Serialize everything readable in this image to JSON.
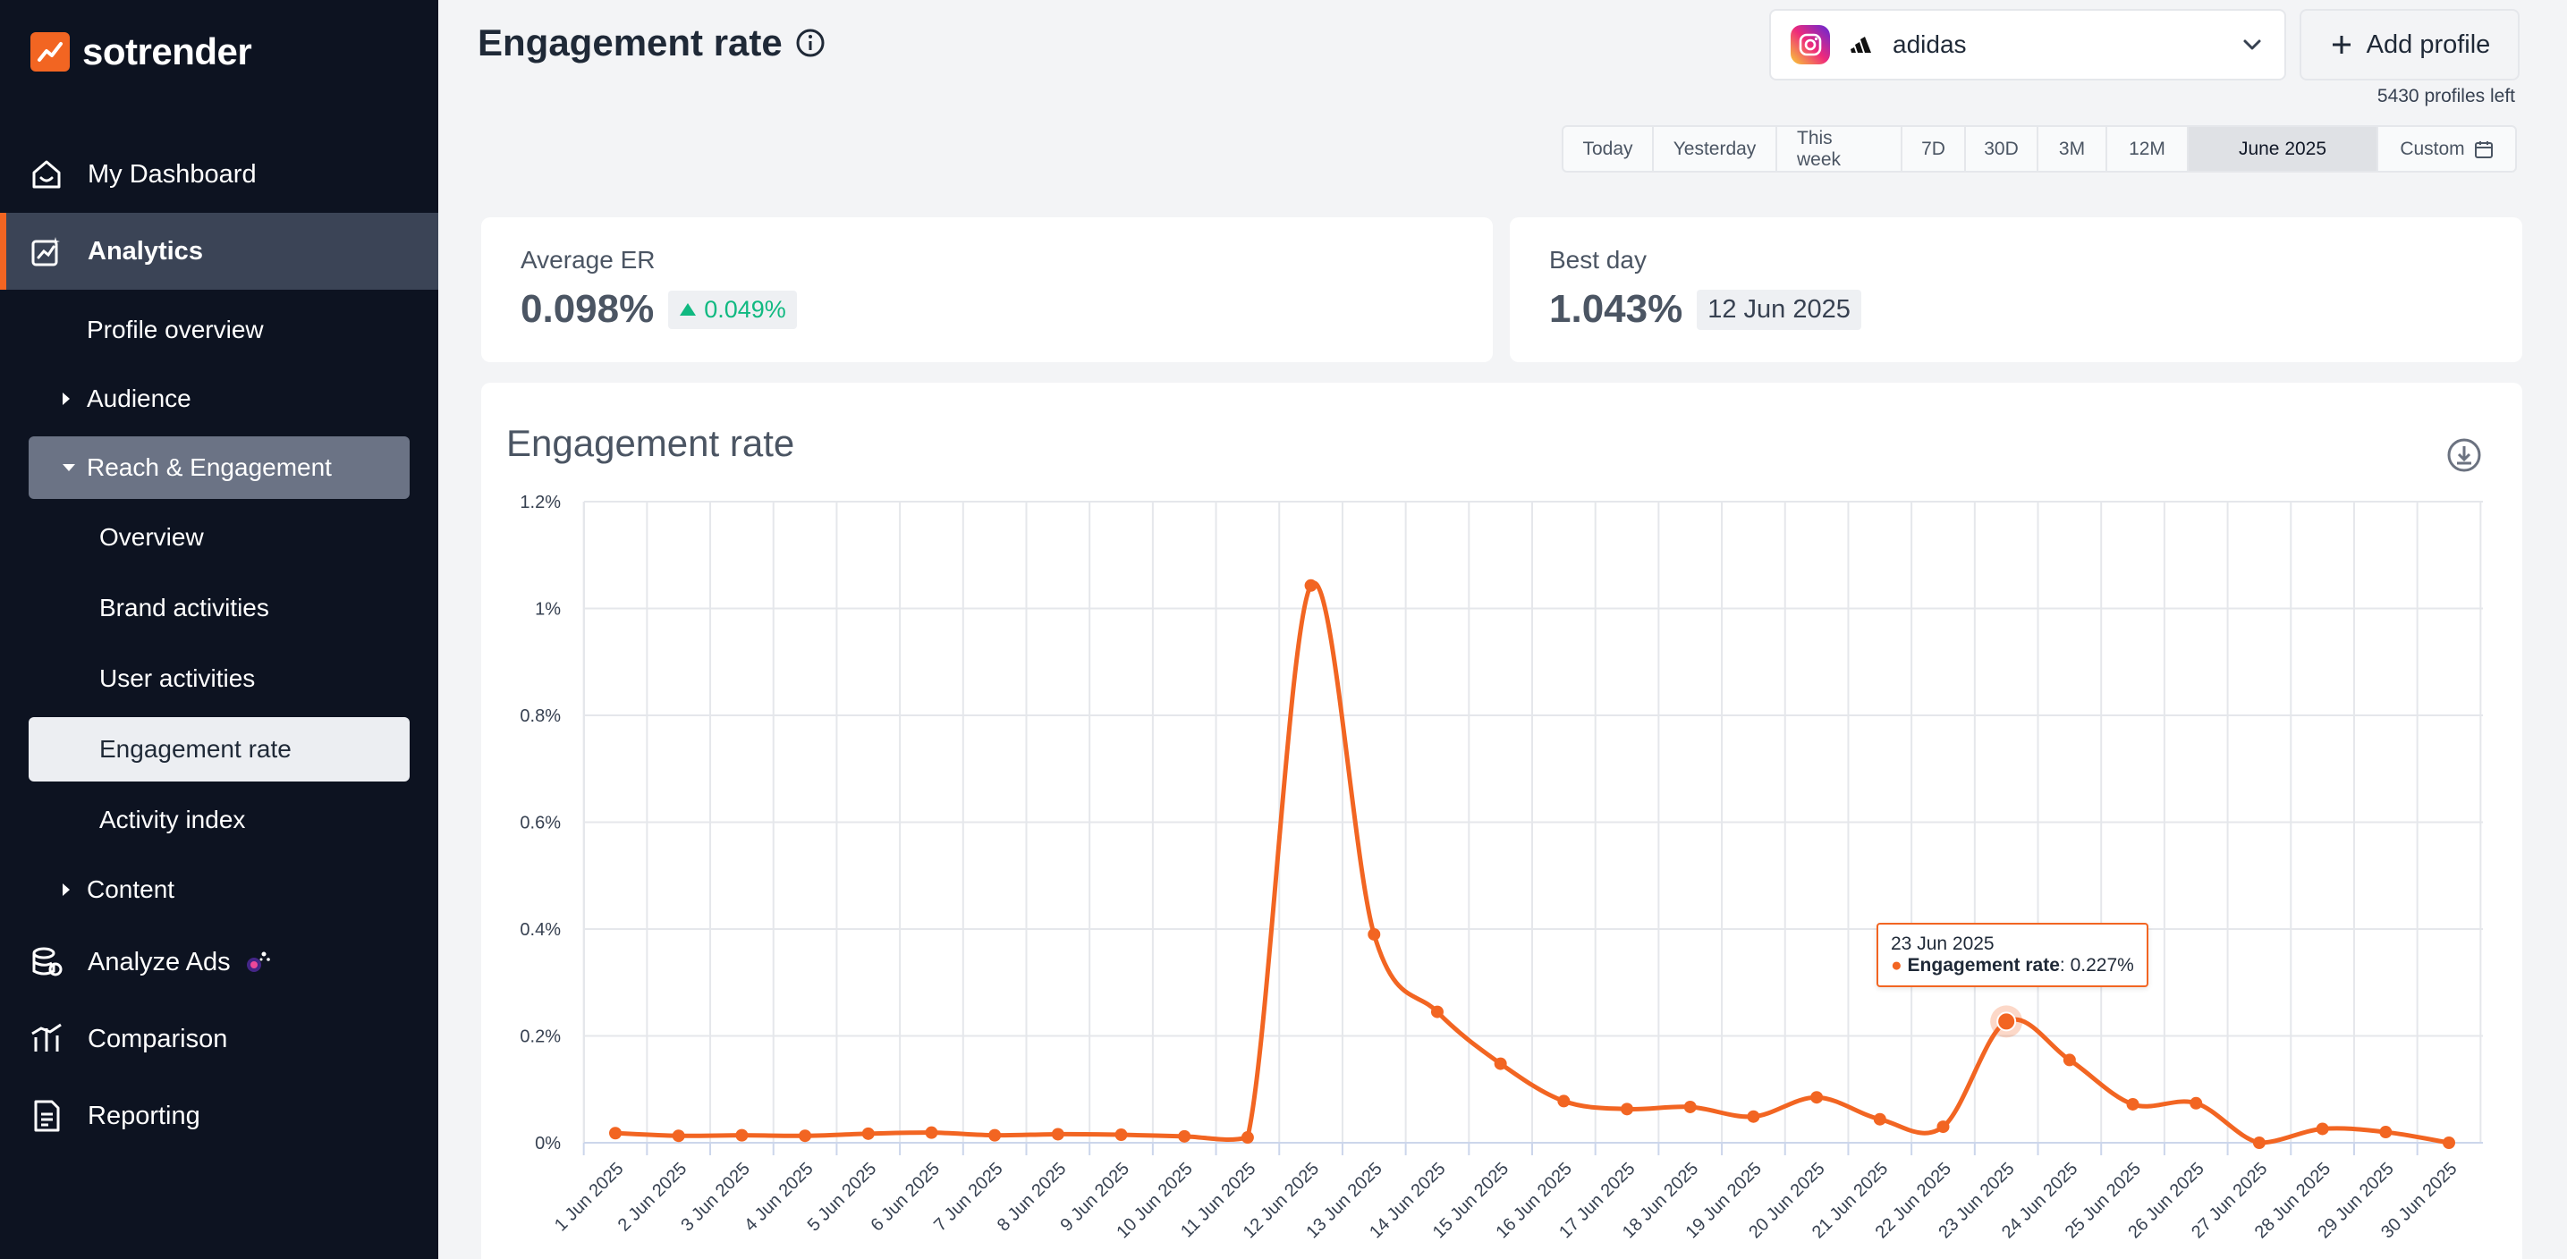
{
  "brand": {
    "name": "sotrender",
    "accent": "#f26522"
  },
  "sidebar": {
    "items": [
      {
        "label": "My Dashboard",
        "icon": "dashboard-icon"
      },
      {
        "label": "Analytics",
        "icon": "analytics-icon",
        "active": true
      },
      {
        "label": "Analyze Ads",
        "icon": "ads-icon"
      },
      {
        "label": "Comparison",
        "icon": "comparison-icon"
      },
      {
        "label": "Reporting",
        "icon": "report-icon"
      }
    ],
    "analytics_sub": {
      "profile_overview": "Profile overview",
      "audience": "Audience",
      "reach_engagement": "Reach & Engagement",
      "overview": "Overview",
      "brand_activities": "Brand activities",
      "user_activities": "User activities",
      "engagement_rate": "Engagement rate",
      "activity_index": "Activity index",
      "content": "Content"
    }
  },
  "header": {
    "title": "Engagement rate",
    "profile": {
      "network": "instagram",
      "name": "adidas"
    },
    "add_profile_label": "Add profile",
    "profiles_left": "5430 profiles left",
    "ranges": [
      "Today",
      "Yesterday",
      "This week",
      "7D",
      "30D",
      "3M",
      "12M",
      "June 2025",
      "Custom"
    ],
    "active_range": "June 2025"
  },
  "cards": {
    "average_er": {
      "label": "Average ER",
      "value": "0.098%",
      "delta": "0.049%"
    },
    "best_day": {
      "label": "Best day",
      "value": "1.043%",
      "date": "12 Jun 2025"
    }
  },
  "chart_data": {
    "type": "line",
    "title": "Engagement rate",
    "x": [
      "1 Jun 2025",
      "2 Jun 2025",
      "3 Jun 2025",
      "4 Jun 2025",
      "5 Jun 2025",
      "6 Jun 2025",
      "7 Jun 2025",
      "8 Jun 2025",
      "9 Jun 2025",
      "10 Jun 2025",
      "11 Jun 2025",
      "12 Jun 2025",
      "13 Jun 2025",
      "14 Jun 2025",
      "15 Jun 2025",
      "16 Jun 2025",
      "17 Jun 2025",
      "18 Jun 2025",
      "19 Jun 2025",
      "20 Jun 2025",
      "21 Jun 2025",
      "22 Jun 2025",
      "23 Jun 2025",
      "24 Jun 2025",
      "25 Jun 2025",
      "26 Jun 2025",
      "27 Jun 2025",
      "28 Jun 2025",
      "29 Jun 2025",
      "30 Jun 2025"
    ],
    "series": [
      {
        "name": "Engagement rate",
        "color": "#f26522",
        "values": [
          0.018,
          0.013,
          0.014,
          0.013,
          0.017,
          0.019,
          0.014,
          0.016,
          0.015,
          0.012,
          0.01,
          1.043,
          0.39,
          0.245,
          0.148,
          0.078,
          0.063,
          0.067,
          0.049,
          0.085,
          0.044,
          0.03,
          0.227,
          0.155,
          0.072,
          0.074,
          0.0,
          0.026,
          0.02,
          0.0
        ]
      }
    ],
    "ylim": [
      0,
      1.2
    ],
    "yticks": [
      "0%",
      "0.2%",
      "0.4%",
      "0.6%",
      "0.8%",
      "1%",
      "1.2%"
    ],
    "grid": true,
    "tooltip": {
      "date": "23 Jun 2025",
      "label": "Engagement rate",
      "value": "0.227%"
    }
  }
}
